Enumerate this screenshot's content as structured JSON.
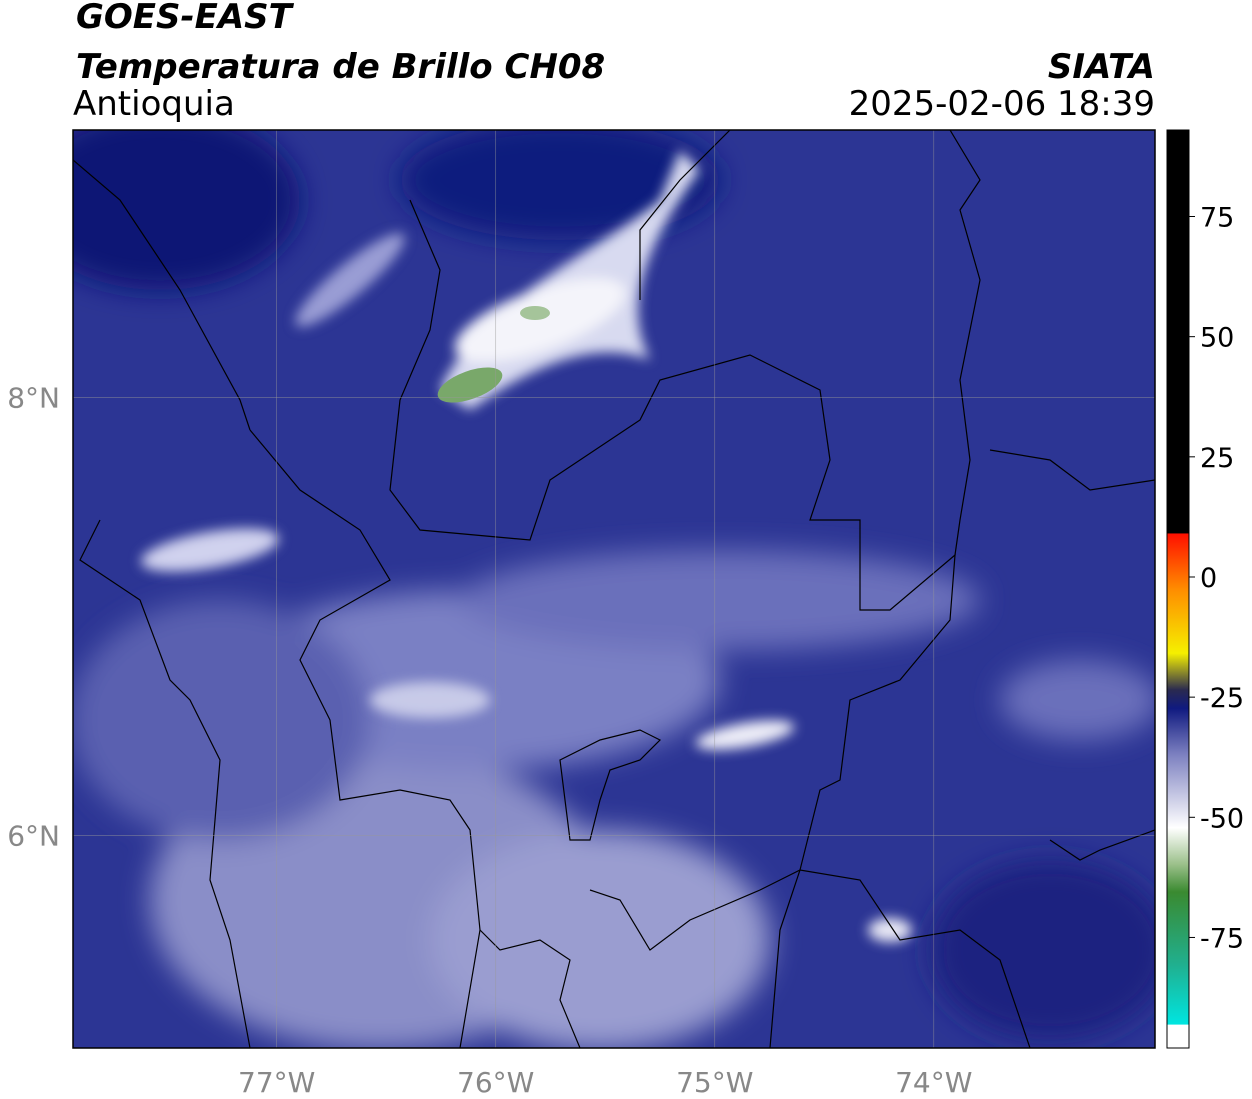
{
  "header": {
    "title": "GOES-EAST",
    "subtitle": "Temperatura de Brillo CH08",
    "region": "Antioquia",
    "source": "SIATA",
    "datetime": "2025-02-06 18:39"
  },
  "map": {
    "xlim": [
      -77.93,
      -72.99
    ],
    "ylim": [
      5.03,
      9.22
    ],
    "xticks": [
      {
        "value": -77,
        "label": "77°W"
      },
      {
        "value": -76,
        "label": "76°W"
      },
      {
        "value": -75,
        "label": "75°W"
      },
      {
        "value": -74,
        "label": "74°W"
      }
    ],
    "yticks": [
      {
        "value": 8,
        "label": "8°N"
      },
      {
        "value": 6,
        "label": "6°N"
      }
    ],
    "grid": true
  },
  "colorbar": {
    "clim": [
      -98,
      93
    ],
    "ticks": [
      75,
      50,
      25,
      0,
      -25,
      -50,
      -75
    ]
  }
}
